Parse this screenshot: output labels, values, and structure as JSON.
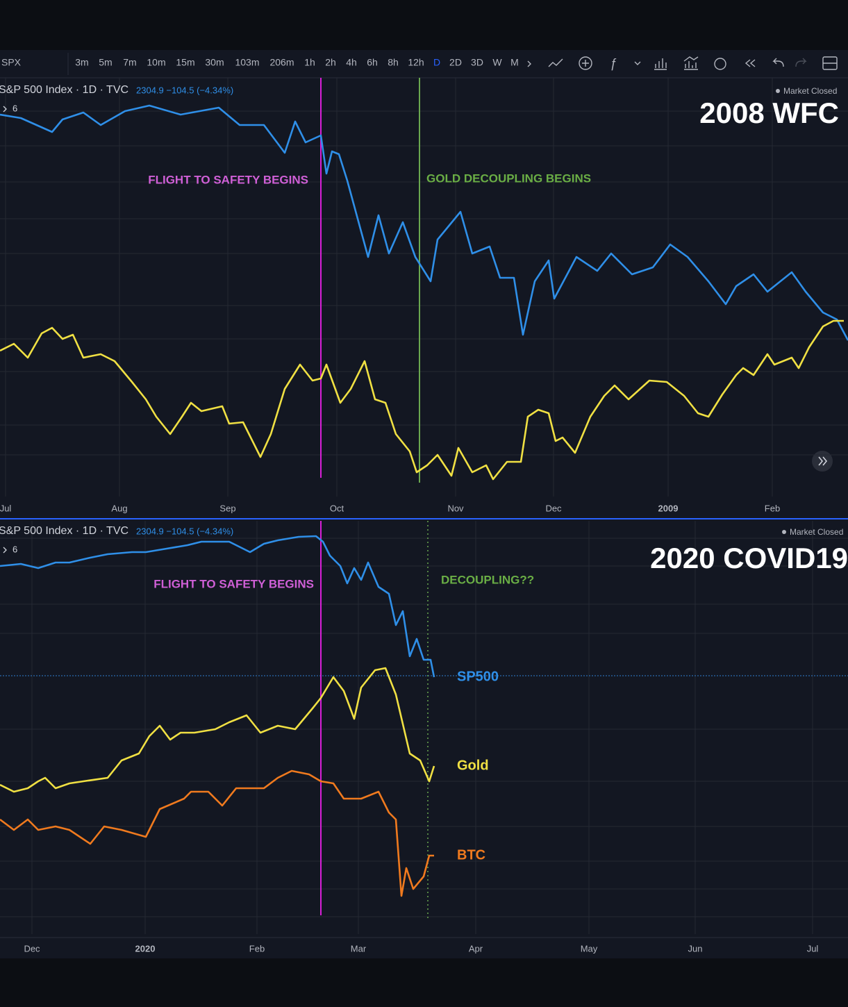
{
  "toolbar": {
    "symbol": "SPX",
    "intervals": [
      "3m",
      "5m",
      "7m",
      "10m",
      "15m",
      "30m",
      "103m",
      "206m",
      "1h",
      "2h",
      "4h",
      "6h",
      "8h",
      "12h",
      "D",
      "2D",
      "3D",
      "W",
      "M"
    ],
    "active_index": 14
  },
  "chart_data": [
    {
      "type": "line",
      "title": "2008 WFC",
      "header": "S&P 500 Index · 1D · TVC",
      "quote": "2304.9 −104.5 (−4.34%)",
      "status": "Market Closed",
      "indicator_count": "6",
      "xlim": [
        0,
        1221
      ],
      "ylim": [
        0,
        603
      ],
      "xticks": [
        {
          "value": 8,
          "label": "Jul"
        },
        {
          "value": 172,
          "label": "Aug"
        },
        {
          "value": 328,
          "label": "Sep"
        },
        {
          "value": 485,
          "label": "Oct"
        },
        {
          "value": 656,
          "label": "Nov"
        },
        {
          "value": 797,
          "label": "Dec"
        },
        {
          "value": 962,
          "label": "2009"
        },
        {
          "value": 1112,
          "label": "Feb"
        }
      ],
      "annotations": [
        {
          "x": 462,
          "color": "#d81fd8",
          "text_color": "#cf5fd6",
          "style": "solid",
          "text": "FLIGHT TO SAFETY BEGINS"
        },
        {
          "x": 604,
          "color": "#6aa84f",
          "text_color": "#6aae45",
          "style": "solid",
          "text": "GOLD DECOUPLING BEGINS"
        }
      ],
      "series": [
        {
          "color": "#2f8fe8",
          "x": [
            0,
            30,
            75,
            90,
            120,
            145,
            180,
            215,
            260,
            315,
            345,
            380,
            410,
            425,
            440,
            462,
            470,
            478,
            488,
            500,
            515,
            530,
            545,
            560,
            580,
            598,
            620,
            630,
            663,
            680,
            705,
            720,
            740,
            753,
            770,
            790,
            798,
            830,
            860,
            880,
            910,
            940,
            965,
            990,
            1020,
            1045,
            1060,
            1085,
            1105,
            1140,
            1160,
            1185,
            1205,
            1221
          ],
          "values": [
            550,
            545,
            525,
            543,
            553,
            535,
            555,
            563,
            550,
            560,
            535,
            535,
            495,
            540,
            510,
            520,
            465,
            497,
            493,
            455,
            400,
            345,
            405,
            350,
            395,
            345,
            310,
            370,
            410,
            350,
            360,
            315,
            315,
            233,
            310,
            340,
            285,
            345,
            325,
            350,
            320,
            330,
            363,
            345,
            310,
            277,
            303,
            320,
            295,
            323,
            295,
            265,
            255,
            225
          ]
        },
        {
          "color": "#f0e043",
          "x": [
            0,
            20,
            40,
            60,
            75,
            90,
            105,
            120,
            145,
            165,
            190,
            210,
            225,
            245,
            262,
            275,
            290,
            320,
            330,
            350,
            375,
            390,
            410,
            432,
            450,
            462,
            470,
            490,
            505,
            525,
            540,
            555,
            570,
            590,
            600,
            615,
            630,
            650,
            660,
            680,
            700,
            710,
            730,
            750,
            760,
            775,
            790,
            800,
            810,
            828,
            850,
            870,
            885,
            905,
            935,
            960,
            985,
            1005,
            1020,
            1040,
            1060,
            1070,
            1085,
            1105,
            1115,
            1140,
            1150,
            1165,
            1185,
            1200,
            1215
          ],
          "values": [
            210,
            220,
            200,
            235,
            243,
            227,
            233,
            200,
            205,
            195,
            165,
            140,
            115,
            90,
            115,
            135,
            123,
            130,
            105,
            107,
            57,
            90,
            155,
            190,
            167,
            170,
            190,
            135,
            155,
            195,
            140,
            135,
            90,
            65,
            35,
            45,
            60,
            30,
            70,
            35,
            45,
            25,
            50,
            50,
            115,
            125,
            120,
            80,
            85,
            63,
            115,
            145,
            160,
            140,
            167,
            165,
            145,
            120,
            115,
            147,
            175,
            185,
            175,
            205,
            190,
            200,
            185,
            215,
            245,
            253,
            253
          ]
        }
      ]
    },
    {
      "type": "line",
      "title": "2020 COVID19",
      "header": "S&P 500 Index · 1D · TVC",
      "quote": "2304.9 −104.5 (−4.34%)",
      "status": "Market Closed",
      "indicator_count": "6",
      "xlim": [
        0,
        1221
      ],
      "ylim": [
        0,
        595
      ],
      "xticks": [
        {
          "value": 46,
          "label": "Dec"
        },
        {
          "value": 209,
          "label": "2020"
        },
        {
          "value": 370,
          "label": "Feb"
        },
        {
          "value": 516,
          "label": "Mar"
        },
        {
          "value": 685,
          "label": "Apr"
        },
        {
          "value": 848,
          "label": "May"
        },
        {
          "value": 1001,
          "label": "Jun"
        },
        {
          "value": 1170,
          "label": "Jul"
        }
      ],
      "annotations": [
        {
          "x": 462,
          "color": "#d81fd8",
          "text_color": "#cf5fd6",
          "style": "solid",
          "text": "FLIGHT TO SAFETY BEGINS"
        },
        {
          "x": 616,
          "color": "#6aa84f",
          "text_color": "#6aae45",
          "style": "dotted",
          "text": "DECOUPLING??"
        }
      ],
      "hline": {
        "value": 372,
        "color": "#2f7fd0"
      },
      "series": [
        {
          "name": "SP500",
          "color": "#2f8fe8",
          "x": [
            0,
            30,
            55,
            80,
            100,
            130,
            155,
            190,
            210,
            240,
            270,
            290,
            330,
            360,
            380,
            400,
            430,
            455,
            465,
            475,
            490,
            500,
            510,
            520,
            530,
            545,
            560,
            570,
            580,
            590,
            600,
            610,
            620,
            625
          ],
          "values": [
            530,
            533,
            527,
            535,
            535,
            542,
            547,
            550,
            550,
            555,
            560,
            565,
            565,
            550,
            562,
            567,
            572,
            573,
            565,
            545,
            530,
            505,
            527,
            510,
            535,
            500,
            490,
            445,
            465,
            400,
            425,
            395,
            395,
            370
          ]
        },
        {
          "name": "Gold",
          "color": "#f0e043",
          "x": [
            0,
            20,
            40,
            55,
            65,
            80,
            100,
            120,
            155,
            175,
            200,
            215,
            230,
            245,
            260,
            280,
            310,
            330,
            355,
            375,
            400,
            425,
            450,
            462,
            480,
            495,
            510,
            520,
            540,
            555,
            570,
            590,
            605,
            618,
            625
          ],
          "values": [
            215,
            205,
            210,
            220,
            225,
            210,
            217,
            220,
            225,
            250,
            260,
            285,
            300,
            280,
            290,
            290,
            295,
            305,
            315,
            290,
            300,
            295,
            325,
            340,
            370,
            350,
            310,
            355,
            380,
            383,
            345,
            260,
            250,
            220,
            242
          ]
        },
        {
          "name": "BTC",
          "color": "#f07a1e",
          "x": [
            0,
            20,
            40,
            55,
            80,
            100,
            130,
            150,
            175,
            210,
            230,
            265,
            275,
            300,
            320,
            340,
            380,
            400,
            420,
            445,
            462,
            480,
            495,
            520,
            545,
            560,
            570,
            578,
            585,
            595,
            610,
            618,
            625
          ],
          "values": [
            165,
            150,
            165,
            150,
            155,
            150,
            130,
            155,
            150,
            140,
            180,
            195,
            205,
            205,
            185,
            210,
            210,
            225,
            235,
            230,
            220,
            217,
            195,
            195,
            205,
            175,
            165,
            55,
            95,
            65,
            83,
            113,
            113
          ]
        }
      ]
    }
  ]
}
